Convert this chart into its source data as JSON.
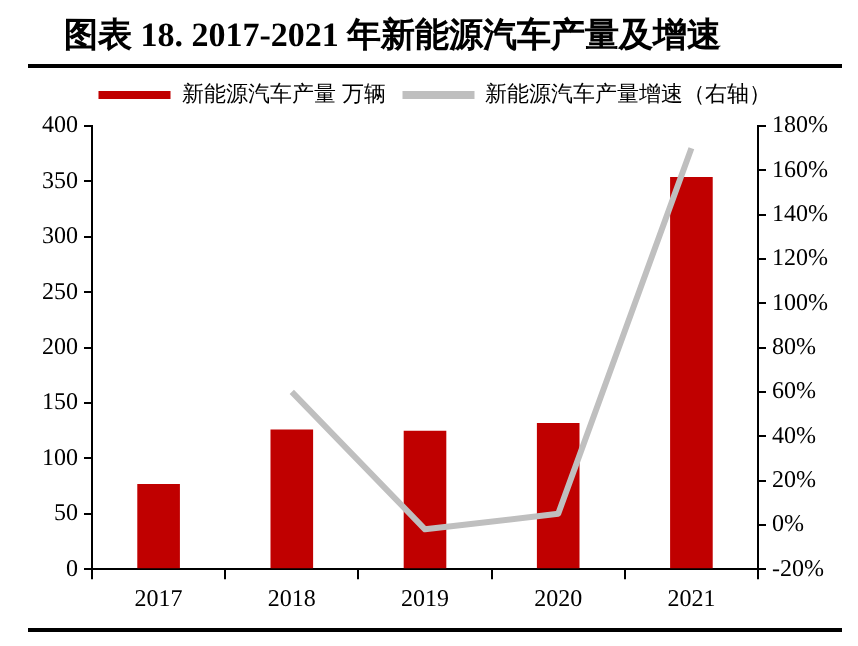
{
  "chart_data": {
    "type": "bar",
    "title": "图表 18. 2017-2021 年新能源汽车产量及增速",
    "categories": [
      "2017",
      "2018",
      "2019",
      "2020",
      "2021"
    ],
    "series": [
      {
        "name": "新能源汽车产量 万辆",
        "color": "#c00000",
        "values": [
          77,
          126,
          125,
          132,
          354
        ]
      },
      {
        "name": "新能源汽车产量增速（右轴）",
        "type": "line",
        "axis": "y2",
        "color": "#bfbfbf",
        "values": [
          null,
          60,
          -2,
          5,
          170
        ]
      }
    ],
    "ylim": [
      0,
      400
    ],
    "yticks": [
      0,
      50,
      100,
      150,
      200,
      250,
      300,
      350,
      400
    ],
    "y2lim": [
      -20,
      180
    ],
    "y2ticks": [
      {
        "value": -20,
        "label": "-20%"
      },
      {
        "value": 0,
        "label": "0%"
      },
      {
        "value": 20,
        "label": "20%"
      },
      {
        "value": 40,
        "label": "40%"
      },
      {
        "value": 60,
        "label": "60%"
      },
      {
        "value": 80,
        "label": "80%"
      },
      {
        "value": 100,
        "label": "100%"
      },
      {
        "value": 120,
        "label": "120%"
      },
      {
        "value": 140,
        "label": "140%"
      },
      {
        "value": 160,
        "label": "160%"
      },
      {
        "value": 180,
        "label": "180%"
      }
    ],
    "grid": false,
    "legend": "top",
    "marker": "none"
  }
}
